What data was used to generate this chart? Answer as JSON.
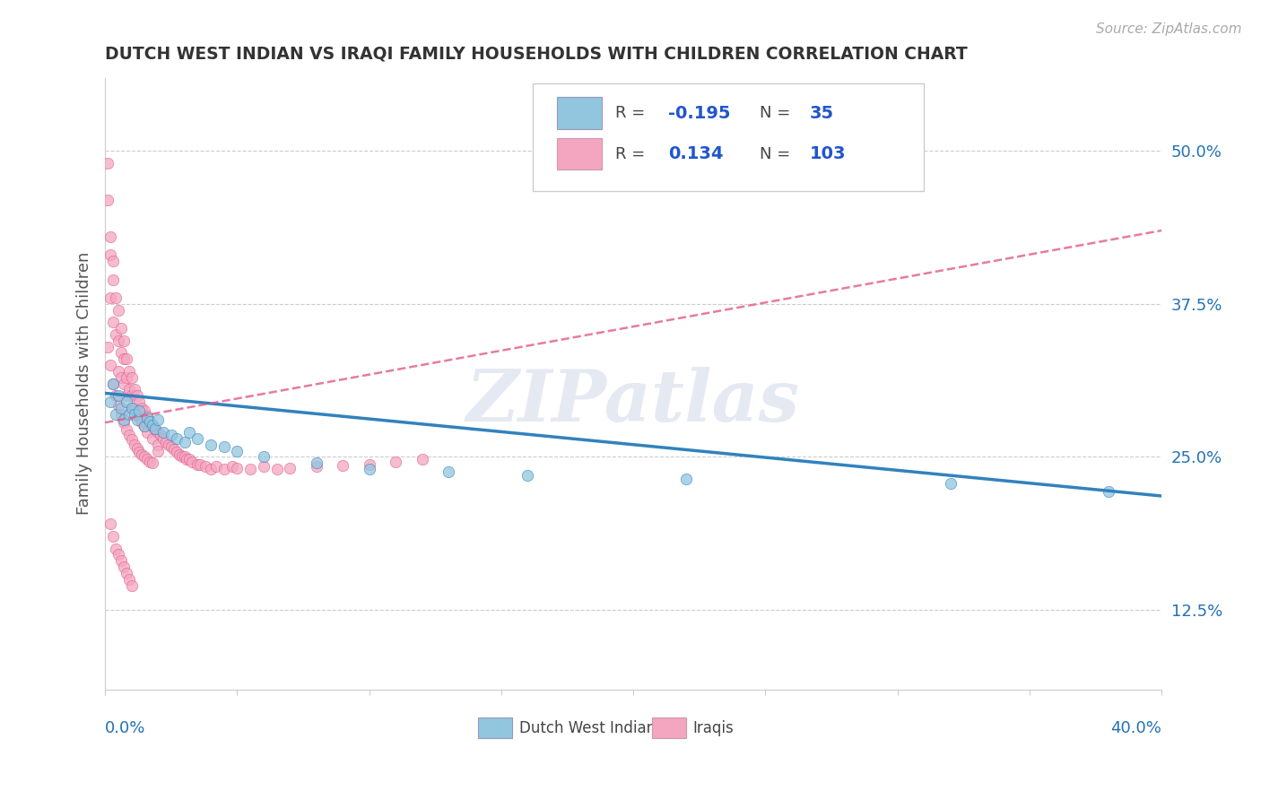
{
  "title": "DUTCH WEST INDIAN VS IRAQI FAMILY HOUSEHOLDS WITH CHILDREN CORRELATION CHART",
  "source": "Source: ZipAtlas.com",
  "ylabel": "Family Households with Children",
  "yticks": [
    0.125,
    0.25,
    0.375,
    0.5
  ],
  "ytick_labels": [
    "12.5%",
    "25.0%",
    "37.5%",
    "50.0%"
  ],
  "xlim": [
    0.0,
    0.4
  ],
  "ylim": [
    0.06,
    0.56
  ],
  "color_blue": "#92c5de",
  "color_pink": "#f4a6c0",
  "color_blue_line": "#3182bd",
  "color_pink_line": "#e05a8a",
  "watermark": "ZIPatlas",
  "dutch_x": [
    0.002,
    0.003,
    0.004,
    0.005,
    0.006,
    0.007,
    0.008,
    0.009,
    0.01,
    0.011,
    0.012,
    0.013,
    0.015,
    0.016,
    0.017,
    0.018,
    0.019,
    0.02,
    0.022,
    0.025,
    0.027,
    0.03,
    0.032,
    0.035,
    0.04,
    0.045,
    0.05,
    0.06,
    0.08,
    0.1,
    0.13,
    0.16,
    0.22,
    0.32,
    0.38
  ],
  "dutch_y": [
    0.295,
    0.31,
    0.285,
    0.3,
    0.29,
    0.28,
    0.295,
    0.285,
    0.29,
    0.285,
    0.28,
    0.288,
    0.275,
    0.282,
    0.279,
    0.276,
    0.273,
    0.28,
    0.27,
    0.268,
    0.265,
    0.262,
    0.27,
    0.265,
    0.26,
    0.258,
    0.255,
    0.25,
    0.245,
    0.24,
    0.238,
    0.235,
    0.232,
    0.228,
    0.222
  ],
  "iraqi_x": [
    0.001,
    0.001,
    0.002,
    0.002,
    0.002,
    0.003,
    0.003,
    0.003,
    0.004,
    0.004,
    0.005,
    0.005,
    0.005,
    0.006,
    0.006,
    0.006,
    0.007,
    0.007,
    0.007,
    0.008,
    0.008,
    0.008,
    0.009,
    0.009,
    0.01,
    0.01,
    0.01,
    0.011,
    0.011,
    0.012,
    0.012,
    0.013,
    0.013,
    0.014,
    0.014,
    0.015,
    0.015,
    0.016,
    0.016,
    0.017,
    0.018,
    0.018,
    0.019,
    0.02,
    0.02,
    0.021,
    0.022,
    0.023,
    0.024,
    0.025,
    0.026,
    0.027,
    0.028,
    0.029,
    0.03,
    0.031,
    0.032,
    0.033,
    0.035,
    0.036,
    0.038,
    0.04,
    0.042,
    0.045,
    0.048,
    0.05,
    0.055,
    0.06,
    0.065,
    0.07,
    0.08,
    0.09,
    0.1,
    0.11,
    0.12,
    0.001,
    0.002,
    0.003,
    0.004,
    0.005,
    0.006,
    0.007,
    0.008,
    0.009,
    0.01,
    0.011,
    0.012,
    0.013,
    0.014,
    0.015,
    0.016,
    0.017,
    0.018,
    0.002,
    0.003,
    0.004,
    0.005,
    0.006,
    0.007,
    0.008,
    0.009,
    0.01,
    0.02
  ],
  "iraqi_y": [
    0.46,
    0.49,
    0.43,
    0.415,
    0.38,
    0.41,
    0.395,
    0.36,
    0.38,
    0.35,
    0.37,
    0.345,
    0.32,
    0.355,
    0.335,
    0.315,
    0.345,
    0.33,
    0.31,
    0.33,
    0.315,
    0.3,
    0.32,
    0.305,
    0.315,
    0.3,
    0.29,
    0.305,
    0.29,
    0.3,
    0.285,
    0.295,
    0.282,
    0.29,
    0.278,
    0.288,
    0.275,
    0.283,
    0.27,
    0.278,
    0.275,
    0.265,
    0.272,
    0.27,
    0.26,
    0.268,
    0.265,
    0.262,
    0.26,
    0.258,
    0.256,
    0.254,
    0.252,
    0.25,
    0.25,
    0.248,
    0.248,
    0.246,
    0.244,
    0.244,
    0.242,
    0.24,
    0.242,
    0.24,
    0.242,
    0.241,
    0.24,
    0.242,
    0.24,
    0.241,
    0.242,
    0.243,
    0.244,
    0.246,
    0.248,
    0.34,
    0.325,
    0.31,
    0.3,
    0.292,
    0.285,
    0.278,
    0.272,
    0.268,
    0.264,
    0.26,
    0.257,
    0.254,
    0.252,
    0.25,
    0.248,
    0.246,
    0.245,
    0.195,
    0.185,
    0.175,
    0.17,
    0.165,
    0.16,
    0.155,
    0.15,
    0.145,
    0.255
  ],
  "blue_line_x": [
    0.0,
    0.4
  ],
  "blue_line_y": [
    0.302,
    0.218
  ],
  "pink_line_x": [
    0.0,
    0.4
  ],
  "pink_line_y": [
    0.278,
    0.435
  ]
}
